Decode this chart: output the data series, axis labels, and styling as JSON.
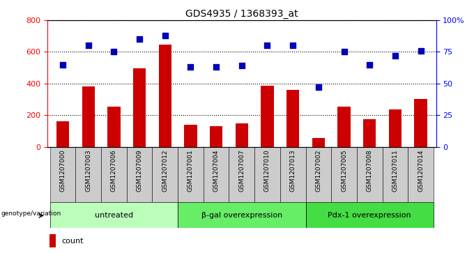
{
  "title": "GDS4935 / 1368393_at",
  "samples": [
    "GSM1207000",
    "GSM1207003",
    "GSM1207006",
    "GSM1207009",
    "GSM1207012",
    "GSM1207001",
    "GSM1207004",
    "GSM1207007",
    "GSM1207010",
    "GSM1207013",
    "GSM1207002",
    "GSM1207005",
    "GSM1207008",
    "GSM1207011",
    "GSM1207014"
  ],
  "counts": [
    160,
    380,
    255,
    495,
    645,
    140,
    130,
    150,
    385,
    360,
    55,
    255,
    175,
    235,
    300
  ],
  "percentiles": [
    65,
    80,
    75,
    85,
    88,
    63,
    63,
    64,
    80,
    80,
    47,
    75,
    65,
    72,
    76
  ],
  "groups": [
    {
      "label": "untreated",
      "start": 0,
      "end": 5,
      "color": "#bbffbb"
    },
    {
      "label": "β-gal overexpression",
      "start": 5,
      "end": 10,
      "color": "#66ee66"
    },
    {
      "label": "Pdx-1 overexpression",
      "start": 10,
      "end": 15,
      "color": "#44dd44"
    }
  ],
  "left_ylim": [
    0,
    800
  ],
  "left_yticks": [
    0,
    200,
    400,
    600,
    800
  ],
  "right_ylim": [
    0,
    100
  ],
  "right_yticks": [
    0,
    25,
    50,
    75,
    100
  ],
  "right_yticklabels": [
    "0",
    "25",
    "50",
    "75",
    "100%"
  ],
  "bar_color": "#cc0000",
  "dot_color": "#0000bb",
  "plot_bg": "#ffffff",
  "xtick_bg": "#cccccc",
  "grid_color": "#000000",
  "dot_size": 40,
  "bar_width": 0.5,
  "fig_width": 6.8,
  "fig_height": 3.63
}
